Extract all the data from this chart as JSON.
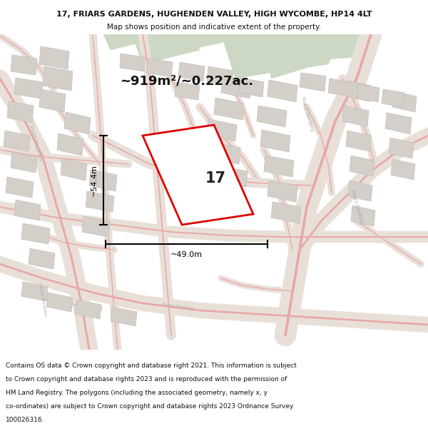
{
  "title_line1": "17, FRIARS GARDENS, HUGHENDEN VALLEY, HIGH WYCOMBE, HP14 4LT",
  "title_line2": "Map shows position and indicative extent of the property.",
  "area_text": "~919m²/~0.227ac.",
  "label_17": "17",
  "dim_width": "~49.0m",
  "dim_height": "~54.4m",
  "footer_lines": [
    "Contains OS data © Crown copyright and database right 2021. This information is subject",
    "to Crown copyright and database rights 2023 and is reproduced with the permission of",
    "HM Land Registry. The polygons (including the associated geometry, namely x, y",
    "co-ordinates) are subject to Crown copyright and database rights 2023 Ordnance Survey",
    "100026316."
  ],
  "map_bg": "#f0ece8",
  "road_fill": "#e8e0d8",
  "road_stroke": "#e8a8a8",
  "building_fill": "#d4cfc9",
  "building_edge": "#c4bfb9",
  "green_fill": "#ccd8c4",
  "plot_stroke": "#dd0000",
  "plot_fill": "#ffffff",
  "dim_color": "#000000",
  "text_color": "#111111",
  "road_label_color": "#aaaaaa",
  "white": "#ffffff"
}
